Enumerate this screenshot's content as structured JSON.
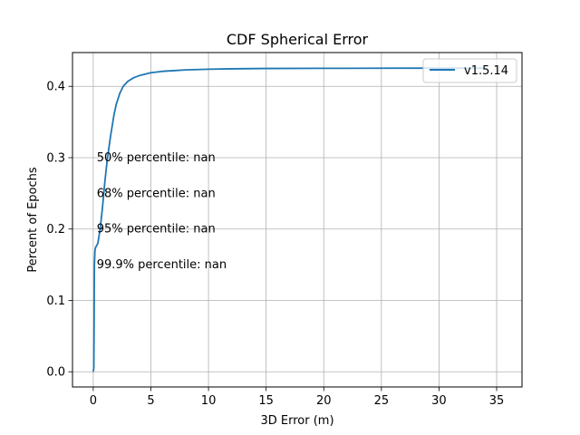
{
  "chart_data": {
    "type": "line",
    "title": "CDF Spherical Error",
    "xlabel": "3D Error (m)",
    "ylabel": "Percent of Epochs",
    "xlim": [
      -1.8,
      37.2
    ],
    "ylim": [
      -0.0213,
      0.4473
    ],
    "xticks": [
      0,
      5,
      10,
      15,
      20,
      25,
      30,
      35
    ],
    "yticks": [
      0.0,
      0.1,
      0.2,
      0.3,
      0.4
    ],
    "xtick_labels": [
      "0",
      "5",
      "10",
      "15",
      "20",
      "25",
      "30",
      "35"
    ],
    "ytick_labels": [
      "0.0",
      "0.1",
      "0.2",
      "0.3",
      "0.4"
    ],
    "grid": true,
    "legend_position": "top-right",
    "series": [
      {
        "name": "v1.5.14",
        "color": "#1f77b4",
        "x": [
          0.0,
          0.05,
          0.08,
          0.1,
          0.15,
          0.2,
          0.4,
          0.6,
          0.8,
          1.0,
          1.2,
          1.5,
          1.8,
          2.0,
          2.3,
          2.6,
          3.0,
          3.5,
          4.0,
          5.0,
          6.0,
          7.0,
          8.0,
          10.0,
          12.0,
          15.0,
          20.0,
          25.0,
          30.0,
          34.0
        ],
        "y": [
          0.0,
          0.005,
          0.08,
          0.15,
          0.17,
          0.174,
          0.18,
          0.2,
          0.23,
          0.265,
          0.295,
          0.33,
          0.36,
          0.375,
          0.39,
          0.4,
          0.407,
          0.412,
          0.415,
          0.419,
          0.421,
          0.422,
          0.423,
          0.424,
          0.4245,
          0.425,
          0.4252,
          0.4254,
          0.4255,
          0.4255
        ]
      }
    ],
    "annotations": [
      {
        "text": "50% percentile: nan",
        "x": 0.3,
        "y": 0.3
      },
      {
        "text": "68% percentile: nan",
        "x": 0.3,
        "y": 0.25
      },
      {
        "text": "95% percentile: nan",
        "x": 0.3,
        "y": 0.2
      },
      {
        "text": "99.9% percentile: nan",
        "x": 0.3,
        "y": 0.15
      }
    ]
  }
}
